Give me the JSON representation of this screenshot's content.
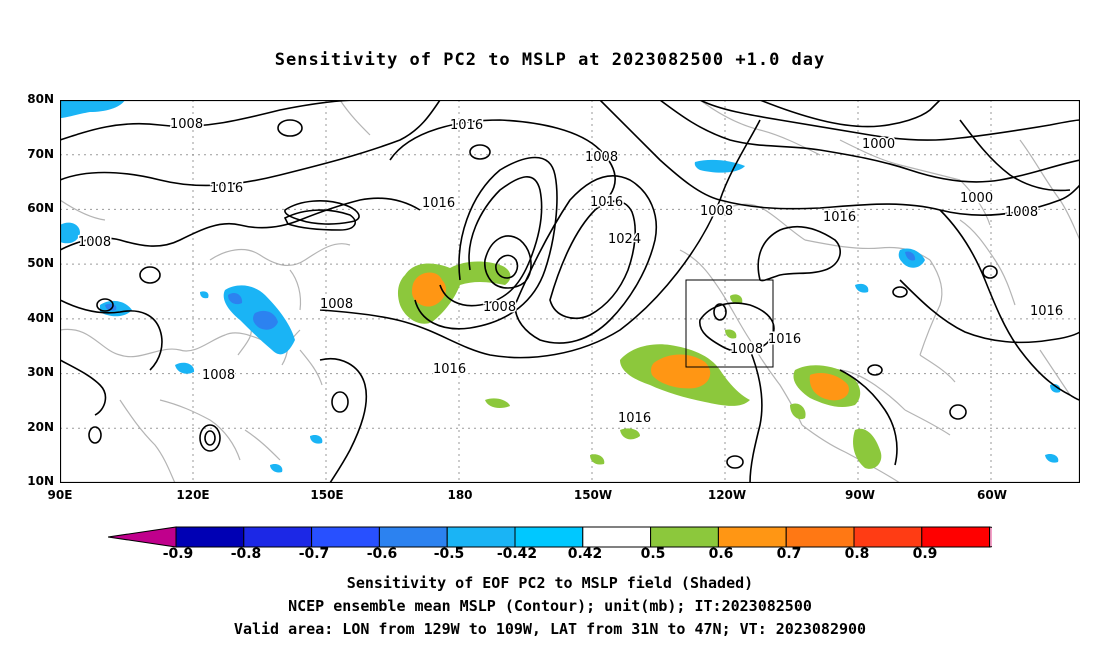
{
  "title": "Sensitivity of PC2 to MSLP at 2023082500 +1.0 day",
  "map": {
    "lat_labels": [
      "80N",
      "70N",
      "60N",
      "50N",
      "40N",
      "30N",
      "20N",
      "10N"
    ],
    "lon_labels": [
      "90E",
      "120E",
      "150E",
      "180",
      "150W",
      "120W",
      "90W",
      "60W"
    ],
    "extent": {
      "lon_min": 90,
      "lon_max": 320,
      "lat_min": 10,
      "lat_max": 80
    },
    "valid_box": {
      "lon": [
        231,
        251
      ],
      "lat": [
        31,
        47
      ]
    },
    "contour_labels": [
      "1008",
      "1016",
      "1008",
      "1016",
      "1008",
      "1016",
      "1008",
      "1016",
      "1024",
      "1008",
      "1016",
      "1008",
      "1000",
      "1000",
      "1008",
      "1016",
      "1016",
      "1016",
      "1008",
      "1008",
      "1016"
    ]
  },
  "colorbar": {
    "labels": [
      "-0.9",
      "-0.8",
      "-0.7",
      "-0.6",
      "-0.5",
      "-0.42",
      "0.42",
      "0.5",
      "0.6",
      "0.7",
      "0.8",
      "0.9"
    ],
    "colors": [
      "#c0008c",
      "#0000b4",
      "#1c28e6",
      "#2850ff",
      "#2c82f0",
      "#1ab4f5",
      "#00c8ff",
      "#ffffff",
      "#8cc83c",
      "#ff9614",
      "#ff7814",
      "#ff3c14",
      "#ff0000",
      "#f5a0c8"
    ]
  },
  "captions": [
    "Sensitivity of EOF PC2 to MSLP field (Shaded)",
    "NCEP ensemble mean MSLP (Contour); unit(mb); IT:2023082500",
    "Valid area: LON from 129W to 109W, LAT from 31N to 47N; VT: 2023082900"
  ]
}
